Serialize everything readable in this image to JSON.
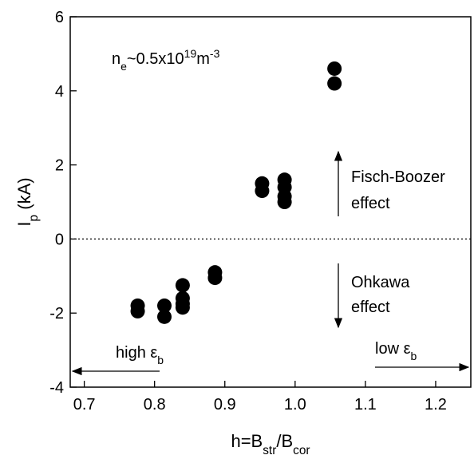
{
  "chart_data": {
    "type": "scatter",
    "xlabel": [
      {
        "text": "h=B"
      },
      {
        "text": "str",
        "shift": "sub"
      },
      {
        "text": "/B"
      },
      {
        "text": "cor",
        "shift": "sub"
      }
    ],
    "ylabel": [
      {
        "text": "I"
      },
      {
        "text": "p",
        "shift": "sub"
      },
      {
        "text": " (kA)"
      }
    ],
    "x": [
      0.776,
      0.776,
      0.814,
      0.814,
      0.84,
      0.84,
      0.84,
      0.84,
      0.886,
      0.886,
      0.953,
      0.953,
      0.985,
      0.985,
      0.985,
      0.985,
      1.056,
      1.056
    ],
    "y": [
      -1.8,
      -1.95,
      -1.8,
      -2.1,
      -1.25,
      -1.6,
      -1.75,
      -1.85,
      -0.9,
      -1.05,
      1.5,
      1.3,
      1.6,
      1.4,
      1.15,
      1.0,
      4.6,
      4.2
    ],
    "color": "#000000",
    "xlim": [
      0.68,
      1.25
    ],
    "ylim": [
      -4,
      6
    ],
    "xticks": [
      0.7,
      0.8,
      0.9,
      {
        "value": 1,
        "label": "1.0"
      },
      1.1,
      1.2
    ],
    "yticks": [
      -4,
      -2,
      0,
      2,
      4,
      6
    ],
    "hline": 0,
    "annotations": {
      "density": [
        {
          "text": "n"
        },
        {
          "text": "e",
          "shift": "sub"
        },
        {
          "text": "~0.5x10"
        },
        {
          "text": "19",
          "shift": "super"
        },
        {
          "text": "m"
        },
        {
          "text": "-3",
          "shift": "super"
        }
      ],
      "fb1": [
        {
          "text": "Fisch-Boozer"
        }
      ],
      "fb2": [
        {
          "text": "effect"
        }
      ],
      "ok1": [
        {
          "text": "Ohkawa"
        }
      ],
      "ok2": [
        {
          "text": "effect"
        }
      ],
      "high": [
        {
          "text": "high ε"
        },
        {
          "text": "b",
          "shift": "sub"
        }
      ],
      "low": [
        {
          "text": "low ε"
        },
        {
          "text": "b",
          "shift": "sub"
        }
      ]
    }
  }
}
